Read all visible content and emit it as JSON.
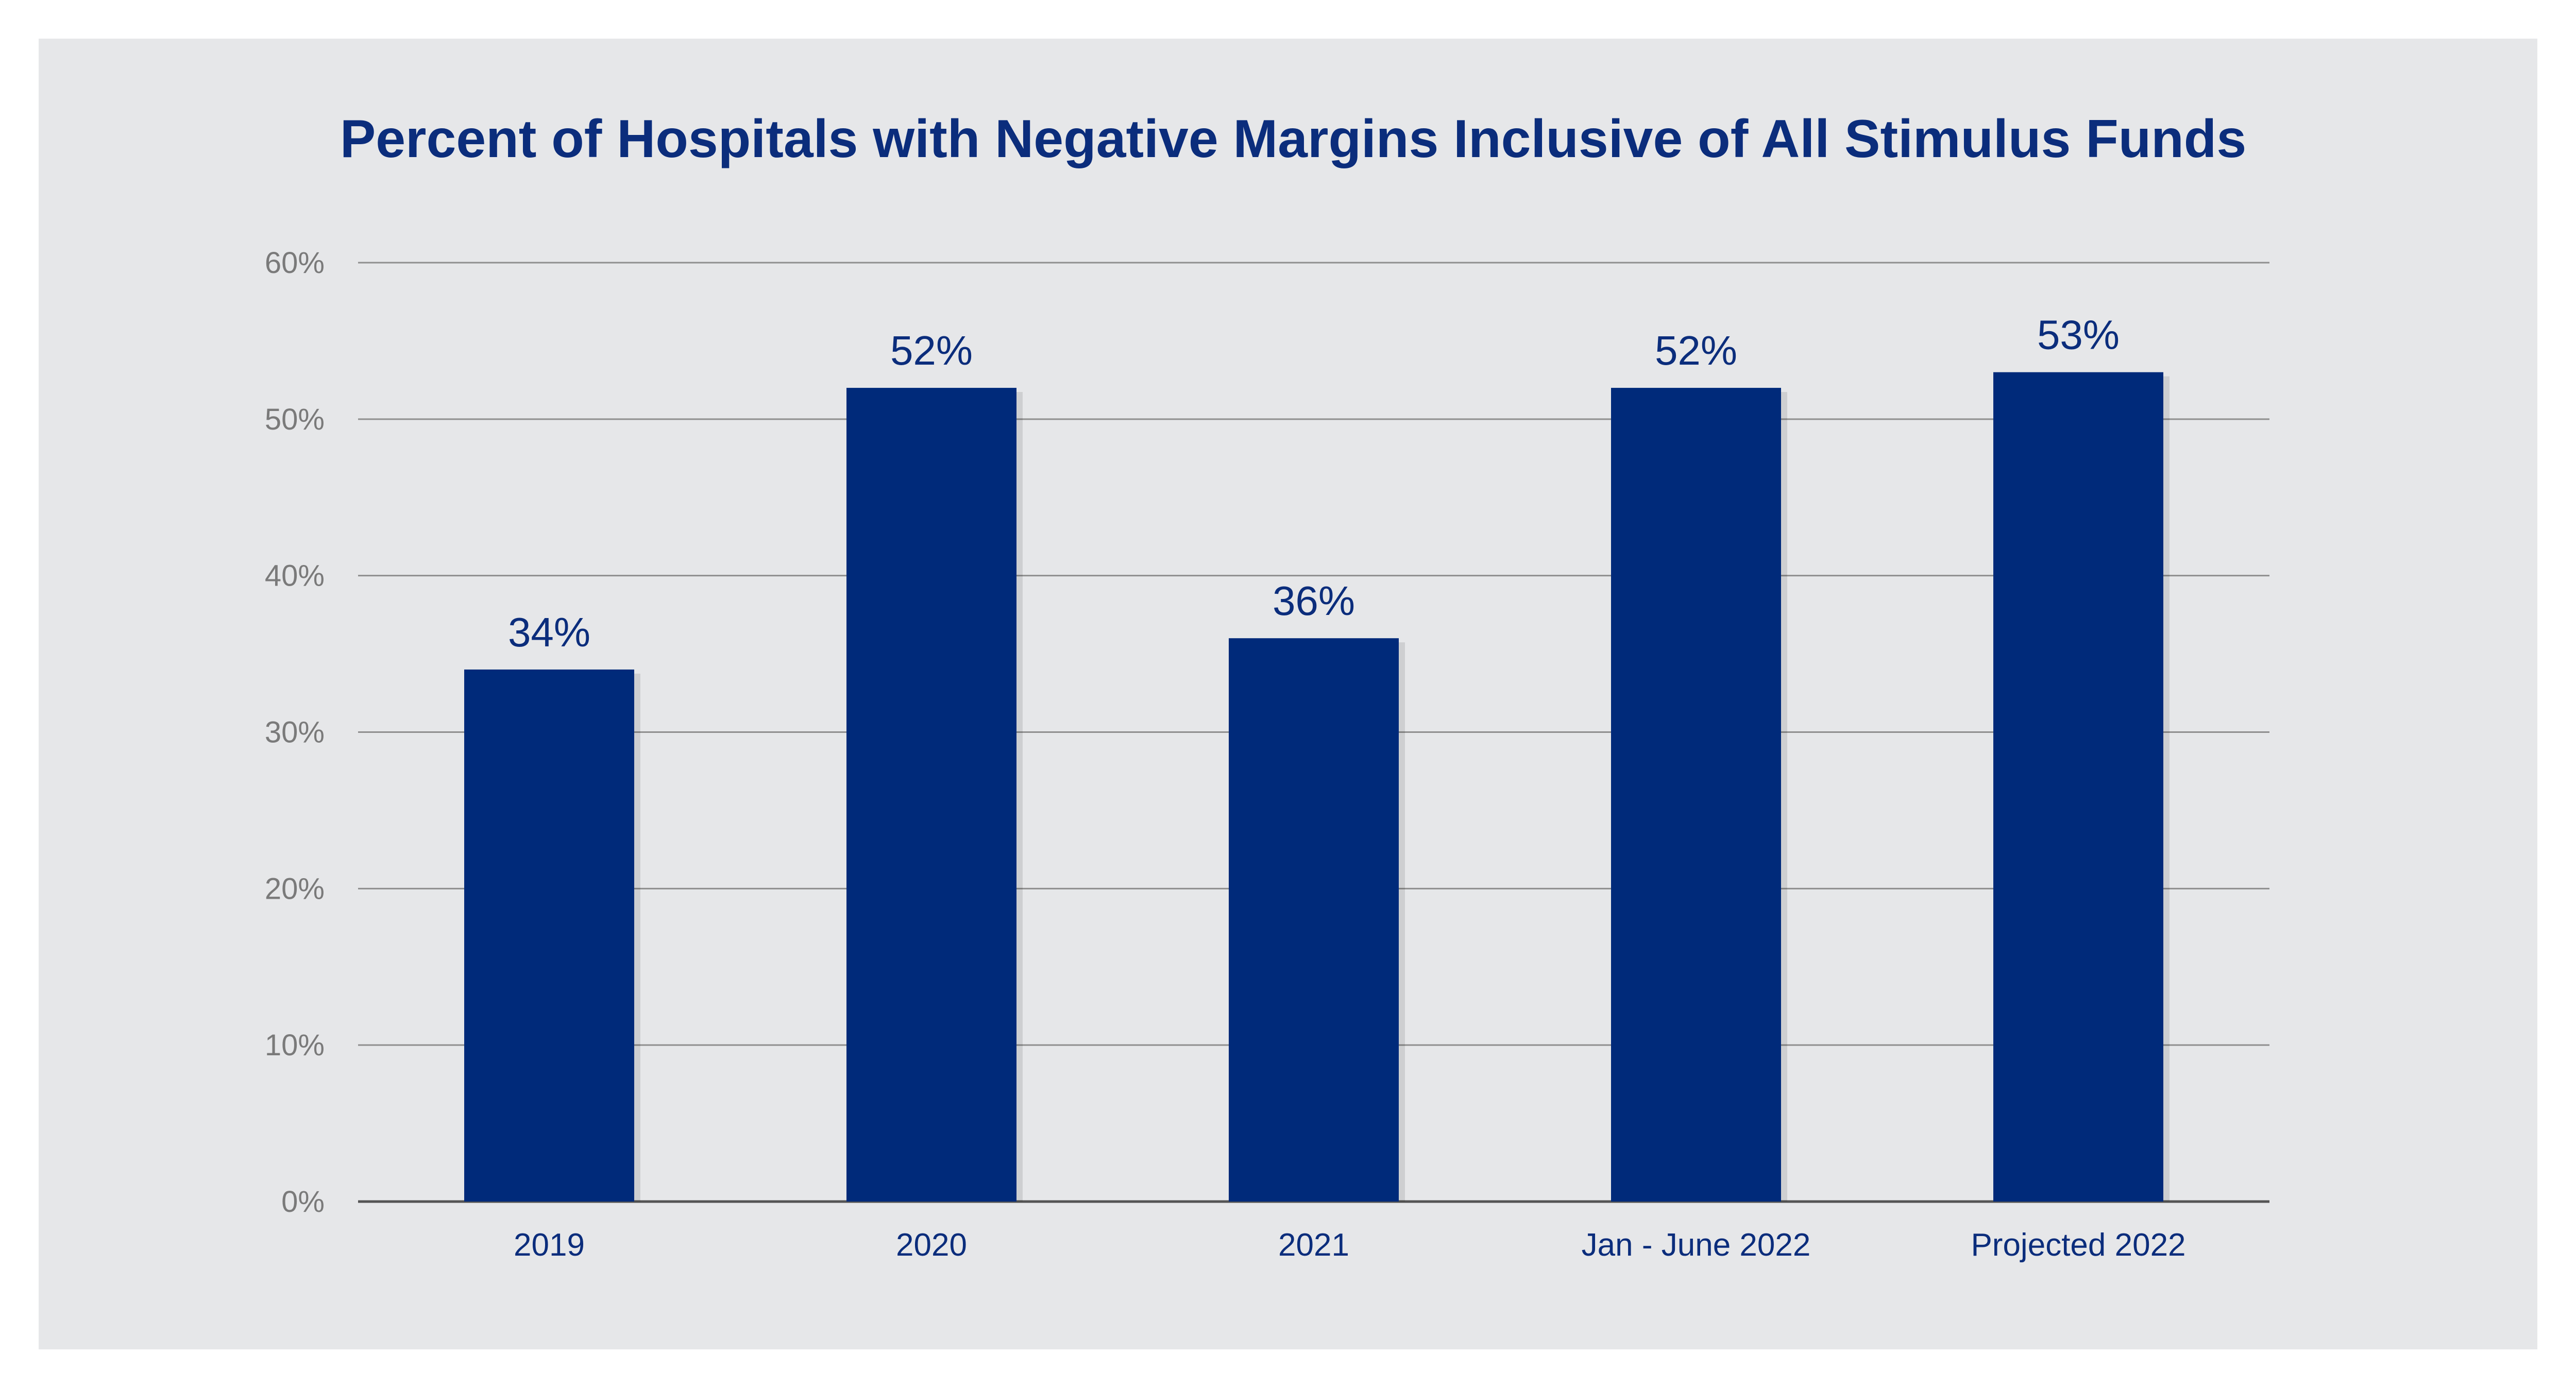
{
  "colors": {
    "panel_background": "#e6e7e9",
    "bar": "#002a7a",
    "title": "#0b2d7c",
    "data_label": "#0b2d7c",
    "category_label": "#0b2d7c",
    "tick_label": "#7a7a7a",
    "gridline": "#8f8f8f",
    "baseline": "#555555"
  },
  "chart_data": {
    "type": "bar",
    "title": "Percent of Hospitals with Negative Margins Inclusive of All Stimulus Funds",
    "xlabel": "",
    "ylabel": "",
    "ylim": [
      0,
      60
    ],
    "grid": true,
    "legend": "none",
    "y_ticks": [
      {
        "value": 0,
        "label": "0%"
      },
      {
        "value": 10,
        "label": "10%"
      },
      {
        "value": 20,
        "label": "20%"
      },
      {
        "value": 30,
        "label": "30%"
      },
      {
        "value": 40,
        "label": "40%"
      },
      {
        "value": 50,
        "label": "50%"
      },
      {
        "value": 60,
        "label": "60%"
      }
    ],
    "categories": [
      "2019",
      "2020",
      "2021",
      "Jan - June 2022",
      "Projected 2022"
    ],
    "values": [
      34,
      52,
      36,
      52,
      53
    ],
    "data_labels": [
      "34%",
      "52%",
      "36%",
      "52%",
      "53%"
    ]
  }
}
